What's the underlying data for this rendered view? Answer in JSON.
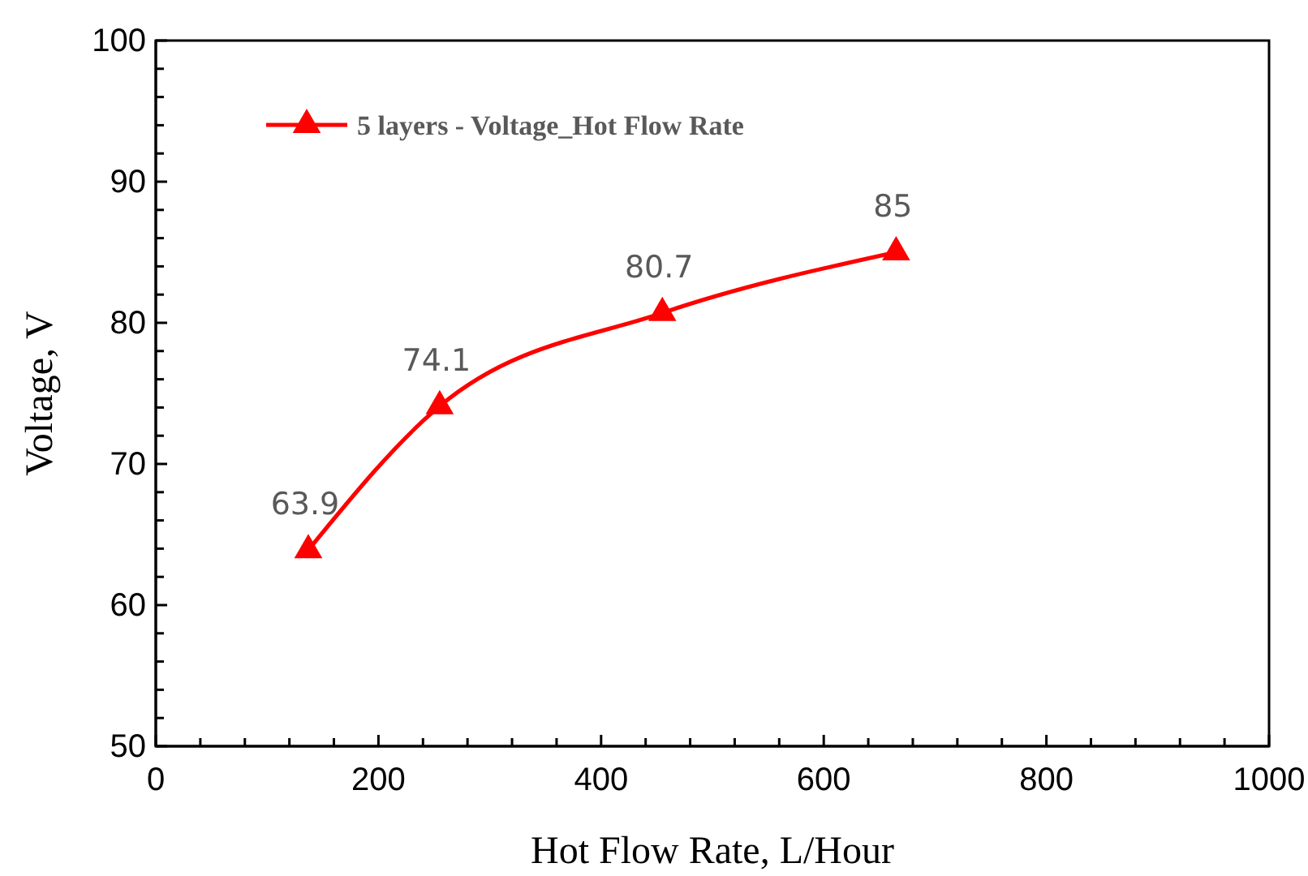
{
  "chart_data": {
    "type": "line",
    "xlabel": "Hot Flow Rate, L/Hour",
    "ylabel": "Voltage, V",
    "x": [
      137,
      255,
      455,
      665
    ],
    "series": [
      {
        "name": "5 layers - Voltage_Hot Flow Rate",
        "color": "#ff0000",
        "values": [
          63.9,
          74.1,
          80.7,
          85
        ]
      }
    ],
    "xlim": [
      0,
      1000
    ],
    "xticks": [
      0,
      {
        "value": 40,
        "label": null
      },
      {
        "value": 80,
        "label": null
      },
      {
        "value": 120,
        "label": null
      },
      {
        "value": 160,
        "label": null
      },
      200,
      {
        "value": 240,
        "label": null
      },
      {
        "value": 280,
        "label": null
      },
      {
        "value": 320,
        "label": null
      },
      {
        "value": 360,
        "label": null
      },
      400,
      {
        "value": 440,
        "label": null
      },
      {
        "value": 480,
        "label": null
      },
      {
        "value": 520,
        "label": null
      },
      {
        "value": 560,
        "label": null
      },
      600,
      {
        "value": 640,
        "label": null
      },
      {
        "value": 680,
        "label": null
      },
      {
        "value": 720,
        "label": null
      },
      {
        "value": 760,
        "label": null
      },
      800,
      {
        "value": 840,
        "label": null
      },
      {
        "value": 880,
        "label": null
      },
      {
        "value": 920,
        "label": null
      },
      {
        "value": 960,
        "label": null
      },
      1000
    ],
    "ylim": [
      50,
      100
    ],
    "yticks": [
      50,
      {
        "value": 52,
        "label": null
      },
      {
        "value": 54,
        "label": null
      },
      {
        "value": 56,
        "label": null
      },
      {
        "value": 58,
        "label": null
      },
      60,
      {
        "value": 62,
        "label": null
      },
      {
        "value": 64,
        "label": null
      },
      {
        "value": 66,
        "label": null
      },
      {
        "value": 68,
        "label": null
      },
      70,
      {
        "value": 72,
        "label": null
      },
      {
        "value": 74,
        "label": null
      },
      {
        "value": 76,
        "label": null
      },
      {
        "value": 78,
        "label": null
      },
      80,
      {
        "value": 82,
        "label": null
      },
      {
        "value": 84,
        "label": null
      },
      {
        "value": 86,
        "label": null
      },
      {
        "value": 88,
        "label": null
      },
      90,
      {
        "value": 92,
        "label": null
      },
      {
        "value": 94,
        "label": null
      },
      {
        "value": 96,
        "label": null
      },
      {
        "value": 98,
        "label": null
      },
      100
    ],
    "grid": false,
    "legend": "top left",
    "marker": "triangle",
    "line_style": "solid",
    "data_labels": true
  }
}
